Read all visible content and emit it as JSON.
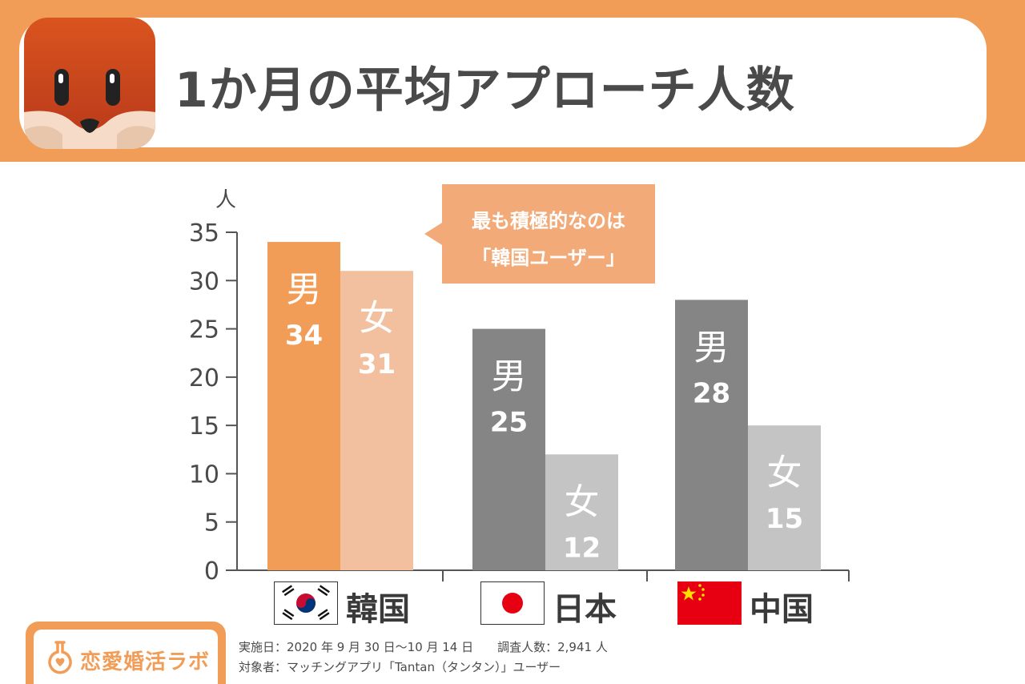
{
  "header": {
    "title": "1か月の平均アプローチ人数"
  },
  "callout": {
    "line1": "最も積極的なのは",
    "line2": "「韓国ユーザー」"
  },
  "countries": [
    {
      "name": "韓国",
      "flag": "south-korea-flag-icon"
    },
    {
      "name": "日本",
      "flag": "japan-flag-icon"
    },
    {
      "name": "中国",
      "flag": "china-flag-icon"
    }
  ],
  "brand": {
    "name": "恋愛婚活ラボ",
    "color": "#f29d57"
  },
  "footnote": {
    "line1": "実施日：2020 年 9 月 30 日〜10 月 14 日　　調査人数：2,941 人",
    "line2": "対象者：マッチングアプリ「Tantan（タンタン）」ユーザー"
  },
  "colors": {
    "header_band": "#f29d57",
    "korea_male": "#f29d57",
    "korea_female": "#f2c09e",
    "other_male": "#858585",
    "other_female": "#c4c4c4",
    "callout": "#f2ab78"
  },
  "chart_data": {
    "type": "bar",
    "title": "1か月の平均アプローチ人数",
    "ylabel": "人",
    "xlabel": "",
    "ylim": [
      0,
      35
    ],
    "yticks": [
      0,
      5,
      10,
      15,
      20,
      25,
      30,
      35
    ],
    "grid": false,
    "categories": [
      "韓国",
      "日本",
      "中国"
    ],
    "series": [
      {
        "name": "男",
        "values": [
          34,
          25,
          28
        ]
      },
      {
        "name": "女",
        "values": [
          31,
          12,
          15
        ]
      }
    ]
  }
}
